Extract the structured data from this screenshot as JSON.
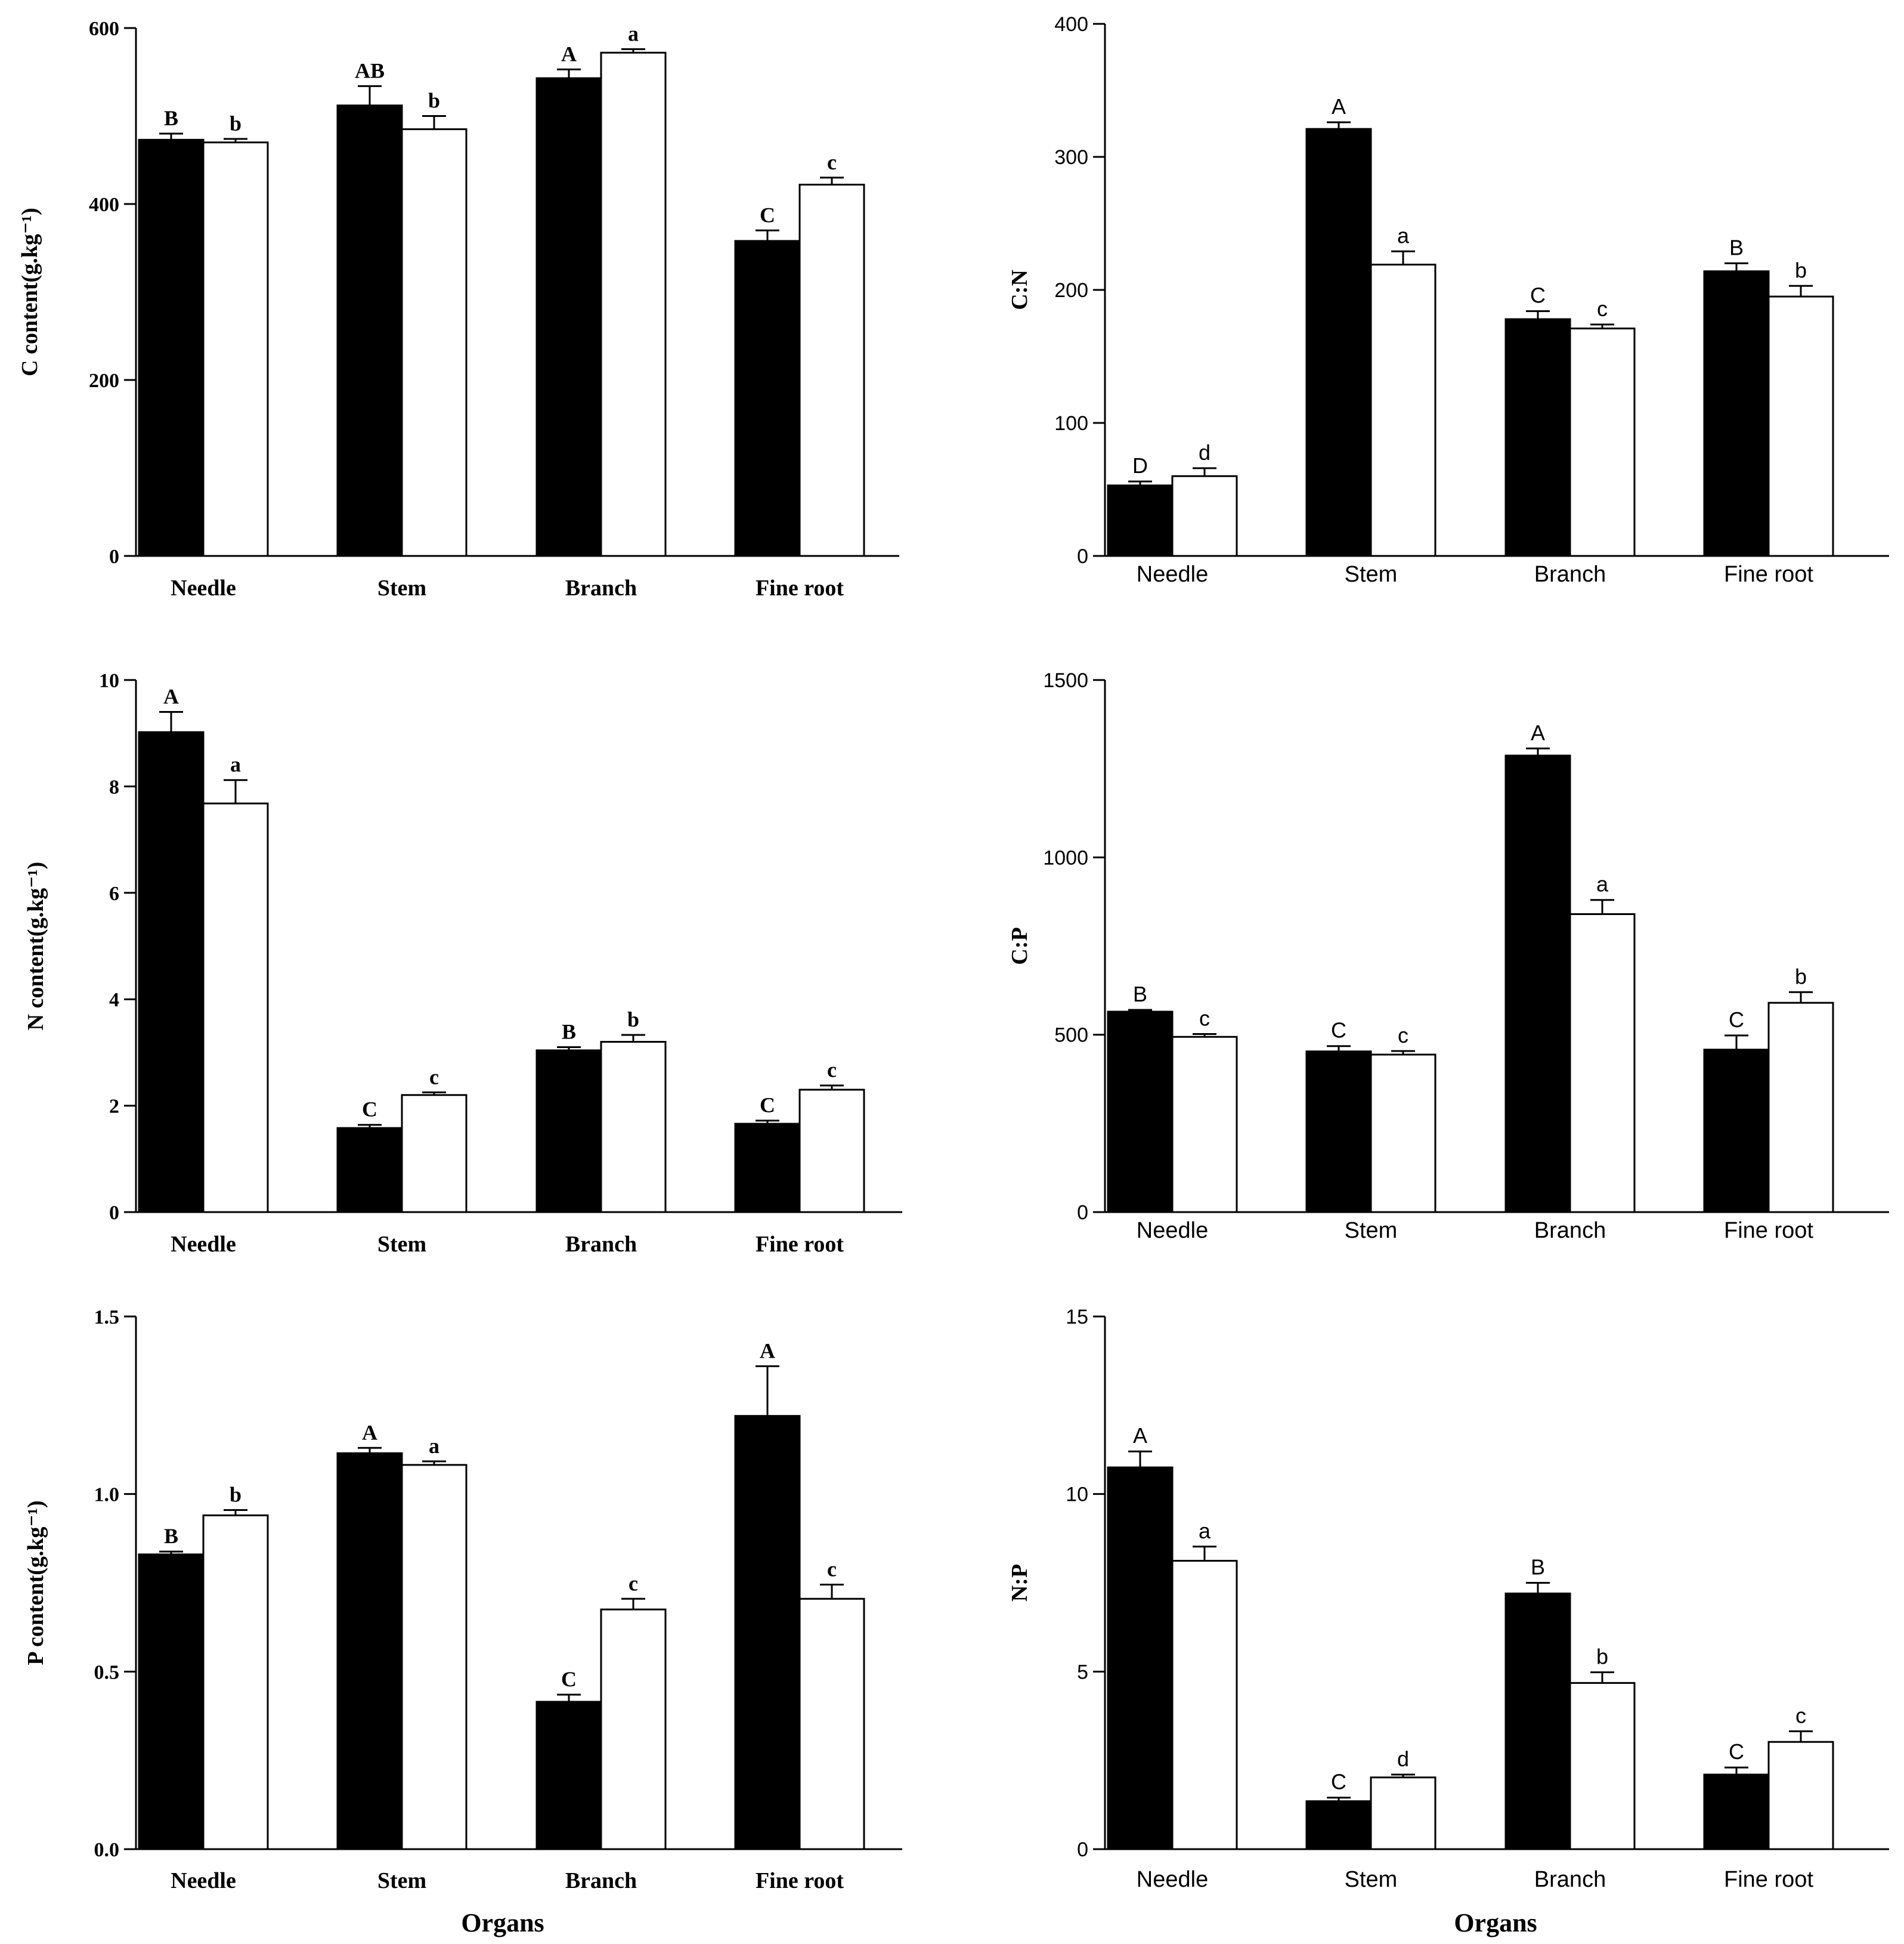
{
  "figure": {
    "x_title_left": "Organs",
    "x_title_right": "Organs"
  },
  "chart_data": [
    {
      "id": "c_content",
      "type": "bar",
      "ylabel": "C content(g.kg⁻¹)",
      "ylim": [
        0,
        600
      ],
      "ticks": [
        0,
        200,
        400,
        600
      ],
      "tick_labels": [
        "0",
        "200",
        "400",
        "600"
      ],
      "categories": [
        "Needle",
        "Stem",
        "Branch",
        "Fine root"
      ],
      "series": [
        {
          "fill": "#000000",
          "values": [
            473,
            512,
            543,
            358
          ],
          "errors": [
            7,
            22,
            10,
            12
          ],
          "letters": [
            "B",
            "AB",
            "A",
            "C"
          ]
        },
        {
          "fill": "#ffffff",
          "values": [
            470,
            485,
            572,
            422
          ],
          "errors": [
            4,
            15,
            4,
            8
          ],
          "letters": [
            "b",
            "b",
            "a",
            "c"
          ]
        }
      ]
    },
    {
      "id": "c_n_ratio",
      "type": "bar",
      "ylabel": "C:N",
      "ylim": [
        0,
        400
      ],
      "ticks": [
        0,
        100,
        200,
        300,
        400
      ],
      "tick_labels": [
        "0",
        "100",
        "200",
        "300",
        "400"
      ],
      "categories": [
        "Needle",
        "Stem",
        "Branch",
        "Fine root"
      ],
      "series": [
        {
          "fill": "#000000",
          "values": [
            53,
            321,
            178,
            214
          ],
          "errors": [
            3,
            5,
            6,
            6
          ],
          "letters": [
            "D",
            "A",
            "C",
            "B"
          ]
        },
        {
          "fill": "#ffffff",
          "values": [
            60,
            219,
            171,
            195
          ],
          "errors": [
            6,
            10,
            3,
            8
          ],
          "letters": [
            "d",
            "a",
            "c",
            "b"
          ]
        }
      ]
    },
    {
      "id": "n_content",
      "type": "bar",
      "ylabel": "N content(g.kg⁻¹)",
      "ylim": [
        0,
        10
      ],
      "ticks": [
        0,
        2,
        4,
        6,
        8,
        10
      ],
      "tick_labels": [
        "0",
        "2",
        "4",
        "6",
        "8",
        "10"
      ],
      "categories": [
        "Needle",
        "Stem",
        "Branch",
        "Fine root"
      ],
      "series": [
        {
          "fill": "#000000",
          "values": [
            9.02,
            1.58,
            3.04,
            1.66
          ],
          "errors": [
            0.38,
            0.06,
            0.06,
            0.06
          ],
          "letters": [
            "A",
            "C",
            "B",
            "C"
          ]
        },
        {
          "fill": "#ffffff",
          "values": [
            7.68,
            2.2,
            3.2,
            2.3
          ],
          "errors": [
            0.44,
            0.05,
            0.13,
            0.08
          ],
          "letters": [
            "a",
            "c",
            "b",
            "c"
          ]
        }
      ]
    },
    {
      "id": "c_p_ratio",
      "type": "bar",
      "ylabel": "C:P",
      "ylim": [
        0,
        1500
      ],
      "ticks": [
        0,
        500,
        1000,
        1500
      ],
      "tick_labels": [
        "0",
        "500",
        "1000",
        "1500"
      ],
      "categories": [
        "Needle",
        "Stem",
        "Branch",
        "Fine root"
      ],
      "series": [
        {
          "fill": "#000000",
          "values": [
            565,
            453,
            1287,
            458
          ],
          "errors": [
            5,
            15,
            20,
            40
          ],
          "letters": [
            "B",
            "C",
            "A",
            "C"
          ]
        },
        {
          "fill": "#ffffff",
          "values": [
            494,
            444,
            840,
            590
          ],
          "errors": [
            8,
            10,
            40,
            30
          ],
          "letters": [
            "c",
            "c",
            "a",
            "b"
          ]
        }
      ]
    },
    {
      "id": "p_content",
      "type": "bar",
      "ylabel": "P content(g.kg⁻¹)",
      "ylim": [
        0,
        1.5
      ],
      "ticks": [
        0,
        0.5,
        1.0,
        1.5
      ],
      "tick_labels": [
        "0.0",
        "0.5",
        "1.0",
        "1.5"
      ],
      "categories": [
        "Needle",
        "Stem",
        "Branch",
        "Fine root"
      ],
      "series": [
        {
          "fill": "#000000",
          "values": [
            0.83,
            1.115,
            0.415,
            1.22
          ],
          "errors": [
            0.008,
            0.015,
            0.02,
            0.14
          ],
          "letters": [
            "B",
            "A",
            "C",
            "A"
          ]
        },
        {
          "fill": "#ffffff",
          "values": [
            0.94,
            1.082,
            0.675,
            0.705
          ],
          "errors": [
            0.015,
            0.01,
            0.03,
            0.04
          ],
          "letters": [
            "b",
            "a",
            "c",
            "c"
          ]
        }
      ]
    },
    {
      "id": "n_p_ratio",
      "type": "bar",
      "ylabel": "N:P",
      "ylim": [
        0,
        15
      ],
      "ticks": [
        0,
        5,
        10,
        15
      ],
      "tick_labels": [
        "0",
        "5",
        "10",
        "15"
      ],
      "categories": [
        "Needle",
        "Stem",
        "Branch",
        "Fine root"
      ],
      "series": [
        {
          "fill": "#000000",
          "values": [
            10.75,
            1.35,
            7.2,
            2.1
          ],
          "errors": [
            0.45,
            0.1,
            0.3,
            0.2
          ],
          "letters": [
            "A",
            "C",
            "B",
            "C"
          ]
        },
        {
          "fill": "#ffffff",
          "values": [
            8.12,
            2.02,
            4.68,
            3.02
          ],
          "errors": [
            0.4,
            0.08,
            0.3,
            0.3
          ],
          "letters": [
            "a",
            "d",
            "b",
            "c"
          ]
        }
      ]
    }
  ]
}
